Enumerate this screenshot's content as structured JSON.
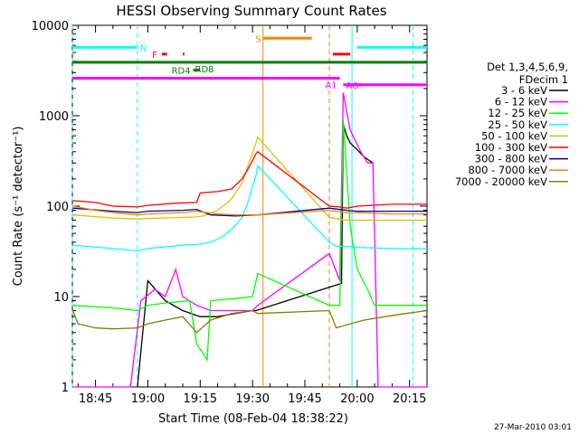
{
  "chart_data": {
    "type": "line",
    "title": "HESSI Observing Summary Count Rates",
    "xlabel": "Start Time (08-Feb-04 18:38:22)",
    "ylabel": "Count Rate (s⁻¹ detector⁻¹)",
    "xlim": [
      "18:38:22",
      "20:20:00"
    ],
    "ylim": [
      1,
      10000
    ],
    "yscale": "log",
    "x_ticks": [
      "18:45",
      "19:00",
      "19:15",
      "19:30",
      "19:45",
      "20:00",
      "20:15"
    ],
    "y_ticks": [
      "1",
      "10",
      "100",
      "1000",
      "10000"
    ],
    "legend_title": [
      "Det 1,3,4,5,6,9,",
      "FDecim 1"
    ],
    "legend_placement": "right",
    "series": [
      {
        "name": "3 - 6 keV",
        "color": "#000000",
        "points": [
          [
            "18:57:00",
            1
          ],
          [
            "19:00:00",
            15
          ],
          [
            "19:05:00",
            9
          ],
          [
            "19:10:00",
            7
          ],
          [
            "19:15:00",
            6
          ],
          [
            "19:20:00",
            6
          ],
          [
            "19:25:00",
            6.5
          ],
          [
            "19:30:00",
            7
          ],
          [
            "19:31:00",
            7
          ],
          [
            "19:55:30",
            14
          ],
          [
            "19:56:00",
            800
          ],
          [
            "19:57:00",
            600
          ],
          [
            "19:58:00",
            500
          ],
          [
            "20:00:00",
            420
          ],
          [
            "20:02:00",
            350
          ],
          [
            "20:04:30",
            300
          ]
        ]
      },
      {
        "name": "6 - 12 keV",
        "color": "#ff00ff",
        "points": [
          [
            "18:38:30",
            1
          ],
          [
            "18:55:00",
            1
          ],
          [
            "18:58:00",
            9
          ],
          [
            "19:02:00",
            12
          ],
          [
            "19:05:00",
            10
          ],
          [
            "19:08:00",
            20
          ],
          [
            "19:10:00",
            10
          ],
          [
            "19:14:00",
            8
          ],
          [
            "19:18:00",
            7
          ],
          [
            "19:24:00",
            7
          ],
          [
            "19:30:00",
            7
          ],
          [
            "19:31:30",
            8
          ],
          [
            "19:52:00",
            30
          ],
          [
            "19:55:00",
            15
          ],
          [
            "19:56:00",
            1800
          ],
          [
            "19:58:00",
            700
          ],
          [
            "20:01:00",
            400
          ],
          [
            "20:03:00",
            300
          ],
          [
            "20:04:30",
            300
          ],
          [
            "20:06:00",
            1
          ],
          [
            "20:20:00",
            1
          ]
        ]
      },
      {
        "name": "12 - 25 keV",
        "color": "#00ff00",
        "points": [
          [
            "18:38:30",
            8
          ],
          [
            "18:50:00",
            7.5
          ],
          [
            "18:57:00",
            7
          ],
          [
            "19:00:00",
            8
          ],
          [
            "19:05:00",
            8.5
          ],
          [
            "19:12:00",
            9
          ],
          [
            "19:14:00",
            3
          ],
          [
            "19:17:00",
            2
          ],
          [
            "19:18:00",
            9
          ],
          [
            "19:25:00",
            9.5
          ],
          [
            "19:30:00",
            10
          ],
          [
            "19:31:30",
            18
          ],
          [
            "19:52:00",
            8
          ],
          [
            "19:55:00",
            8
          ],
          [
            "19:56:00",
            900
          ],
          [
            "19:58:00",
            60
          ],
          [
            "20:00:00",
            20
          ],
          [
            "20:03:00",
            12
          ],
          [
            "20:05:00",
            8
          ],
          [
            "20:20:00",
            8
          ]
        ]
      },
      {
        "name": "25 - 50 keV",
        "color": "#00ffff",
        "points": [
          [
            "18:38:30",
            37
          ],
          [
            "18:50:00",
            34
          ],
          [
            "18:57:00",
            32
          ],
          [
            "19:00:00",
            34
          ],
          [
            "19:10:00",
            37
          ],
          [
            "19:15:00",
            38
          ],
          [
            "19:18:00",
            40
          ],
          [
            "19:21:00",
            45
          ],
          [
            "19:24:00",
            55
          ],
          [
            "19:27:00",
            75
          ],
          [
            "19:29:00",
            120
          ],
          [
            "19:31:00",
            220
          ],
          [
            "19:31:30",
            280
          ],
          [
            "19:52:00",
            40
          ],
          [
            "19:54:00",
            36
          ],
          [
            "19:56:00",
            36
          ],
          [
            "20:00:00",
            35
          ],
          [
            "20:10:00",
            34
          ],
          [
            "20:20:00",
            34
          ]
        ]
      },
      {
        "name": "50 - 100 keV",
        "color": "#e0c000",
        "points": [
          [
            "18:38:30",
            80
          ],
          [
            "18:50:00",
            74
          ],
          [
            "18:57:00",
            72
          ],
          [
            "19:00:00",
            73
          ],
          [
            "19:10:00",
            75
          ],
          [
            "19:14:00",
            76
          ],
          [
            "19:16:00",
            78
          ],
          [
            "19:20:00",
            90
          ],
          [
            "19:24:00",
            120
          ],
          [
            "19:27:00",
            180
          ],
          [
            "19:29:00",
            300
          ],
          [
            "19:31:00",
            500
          ],
          [
            "19:31:30",
            580
          ],
          [
            "19:52:00",
            75
          ],
          [
            "19:55:00",
            72
          ],
          [
            "19:57:00",
            70
          ],
          [
            "20:00:00",
            70
          ],
          [
            "20:10:00",
            70
          ],
          [
            "20:20:00",
            70
          ]
        ]
      },
      {
        "name": "100 - 300 keV",
        "color": "#ff0000",
        "points": [
          [
            "18:38:30",
            115
          ],
          [
            "18:45:00",
            110
          ],
          [
            "18:50:00",
            100
          ],
          [
            "18:57:00",
            98
          ],
          [
            "19:00:00",
            102
          ],
          [
            "19:08:00",
            108
          ],
          [
            "19:14:00",
            110
          ],
          [
            "19:15:00",
            140
          ],
          [
            "19:20:00",
            145
          ],
          [
            "19:24:00",
            155
          ],
          [
            "19:27:00",
            200
          ],
          [
            "19:29:00",
            270
          ],
          [
            "19:31:00",
            380
          ],
          [
            "19:31:30",
            400
          ],
          [
            "19:52:00",
            100
          ],
          [
            "19:55:00",
            98
          ],
          [
            "19:57:00",
            95
          ],
          [
            "20:00:00",
            100
          ],
          [
            "20:10:00",
            105
          ],
          [
            "20:20:00",
            105
          ]
        ]
      },
      {
        "name": "300 - 800 keV",
        "color": "#000090",
        "points": [
          [
            "18:38:30",
            95
          ],
          [
            "18:50:00",
            88
          ],
          [
            "18:57:00",
            85
          ],
          [
            "19:00:00",
            88
          ],
          [
            "19:10:00",
            90
          ],
          [
            "19:14:00",
            92
          ],
          [
            "19:18:00",
            80
          ],
          [
            "19:25:00",
            78
          ],
          [
            "19:31:30",
            80
          ],
          [
            "19:52:00",
            95
          ],
          [
            "19:57:00",
            90
          ],
          [
            "20:00:00",
            88
          ],
          [
            "20:10:00",
            88
          ],
          [
            "20:20:00",
            88
          ]
        ]
      },
      {
        "name": "800 - 7000 keV",
        "color": "#ff8000",
        "points": [
          [
            "18:38:30",
            100
          ],
          [
            "18:45:00",
            90
          ],
          [
            "18:50:00",
            85
          ],
          [
            "18:57:00",
            80
          ],
          [
            "19:00:00",
            82
          ],
          [
            "19:10:00",
            85
          ],
          [
            "19:14:00",
            88
          ],
          [
            "19:20:00",
            82
          ],
          [
            "19:25:00",
            80
          ],
          [
            "19:31:30",
            80
          ],
          [
            "19:52:00",
            90
          ],
          [
            "19:57:00",
            85
          ],
          [
            "20:00:00",
            85
          ],
          [
            "20:10:00",
            82
          ],
          [
            "20:20:00",
            82
          ]
        ]
      },
      {
        "name": "7000 - 20000 keV",
        "color": "#808000",
        "points": [
          [
            "18:38:30",
            7
          ],
          [
            "18:40:00",
            5
          ],
          [
            "18:45:00",
            4.5
          ],
          [
            "18:50:00",
            4.4
          ],
          [
            "18:57:00",
            4.5
          ],
          [
            "19:00:00",
            5
          ],
          [
            "19:05:00",
            5.5
          ],
          [
            "19:10:00",
            6
          ],
          [
            "19:14:00",
            4
          ],
          [
            "19:18:00",
            5.5
          ],
          [
            "19:24:00",
            6.5
          ],
          [
            "19:30:00",
            7
          ],
          [
            "19:31:30",
            6.5
          ],
          [
            "19:52:00",
            7
          ],
          [
            "19:54:00",
            4.5
          ],
          [
            "19:58:00",
            5
          ],
          [
            "20:02:00",
            5.5
          ],
          [
            "20:08:00",
            6
          ],
          [
            "20:14:00",
            6.5
          ],
          [
            "20:20:00",
            7
          ]
        ]
      }
    ],
    "vertical_markers": [
      {
        "time": "18:38:22",
        "color": "#00ffff",
        "style": "dashed"
      },
      {
        "time": "18:57:00",
        "color": "#00ffff",
        "style": "dashed"
      },
      {
        "time": "19:33:00",
        "color": "#ff8000",
        "style": "solid"
      },
      {
        "time": "19:52:00",
        "color": "#ff8000",
        "style": "dashed"
      },
      {
        "time": "19:58:30",
        "color": "#00ffff",
        "style": "solid"
      },
      {
        "time": "20:16:00",
        "color": "#00ffff",
        "style": "dashed"
      }
    ],
    "flag_bars": [
      {
        "label": "N",
        "color": "#00ffff",
        "segments": [
          [
            "18:38:22",
            "18:57:00"
          ],
          [
            "20:00:00",
            "20:20:00"
          ]
        ],
        "level": 5700
      },
      {
        "label": "S",
        "color": "#ff8000",
        "segments": [
          [
            "19:33:00",
            "19:47:00"
          ]
        ],
        "level": 7200
      },
      {
        "label": "F",
        "color": "#ff0000",
        "segments": [
          [
            "19:04:00",
            "19:05:30"
          ],
          [
            "19:10:00",
            "19:10:30"
          ],
          [
            "19:53:00",
            "19:58:00"
          ]
        ],
        "level": 4800
      },
      {
        "label": "RD8",
        "color": "#008000",
        "segments": [
          [
            "18:38:22",
            "20:20:00"
          ]
        ],
        "level": 3900
      },
      {
        "label": "RD4",
        "color": "#008000",
        "segments": [
          [
            "19:13:00",
            "19:15:00"
          ]
        ],
        "level": 3200
      },
      {
        "label": "AO",
        "color": "#ff00ff",
        "segments": [
          [
            "19:56:00",
            "20:20:00"
          ]
        ],
        "level": 2200
      },
      {
        "label": "A1",
        "color": "#ff00ff",
        "segments": [
          [
            "18:38:22",
            "19:55:00"
          ]
        ],
        "level": 2600
      }
    ],
    "footer_date": "27-Mar-2010 03:01"
  }
}
